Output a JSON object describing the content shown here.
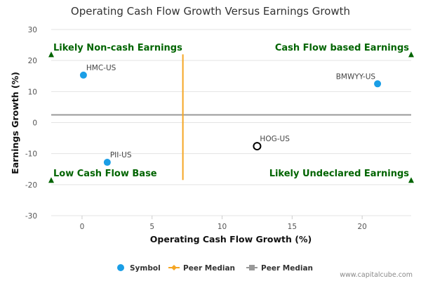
{
  "chart_data": {
    "type": "scatter",
    "title": "Operating Cash Flow Growth Versus Earnings Growth",
    "xlabel": "Operating Cash Flow Growth (%)",
    "ylabel": "Earnings Growth (%)",
    "xlim": [
      -2.2,
      23.5
    ],
    "ylim": [
      -30,
      30
    ],
    "x_ticks": [
      "0",
      "5",
      "10",
      "15",
      "20"
    ],
    "y_ticks": [
      "30",
      "20",
      "10",
      "0",
      "-10",
      "-20",
      "-30"
    ],
    "grid": "horizontal",
    "points": [
      {
        "label": "HMC-US",
        "x": 0.1,
        "y": 15.3,
        "style": "filled"
      },
      {
        "label": "BMWYY-US",
        "x": 21.1,
        "y": 12.5,
        "style": "filled"
      },
      {
        "label": "HOG-US",
        "x": 12.5,
        "y": -7.6,
        "style": "hollow"
      },
      {
        "label": "PII-US",
        "x": 1.8,
        "y": -12.8,
        "style": "filled"
      }
    ],
    "peer_median_x": 7.2,
    "peer_median_y": 2.5,
    "quadrant_labels": {
      "top_left": "Likely Non-cash Earnings",
      "top_right": "Cash Flow based Earnings",
      "bottom_left": "Low Cash Flow Base",
      "bottom_right": "Likely Undeclared Earnings"
    },
    "legend": {
      "position": "bottom",
      "items": [
        {
          "name": "Symbol",
          "color": "#1a9ee6"
        },
        {
          "name": "Peer Median",
          "color": "#f5a623"
        },
        {
          "name": "Peer Median",
          "color": "#999999"
        }
      ]
    },
    "colors": {
      "point": "#1a9ee6",
      "hollow_stroke": "#000000",
      "median_x_line": "#f5a623",
      "median_y_line": "#999999",
      "quadrant_marker": "#006400",
      "grid": "#e3e3e3"
    }
  },
  "credit": "www.capitalcube.com"
}
